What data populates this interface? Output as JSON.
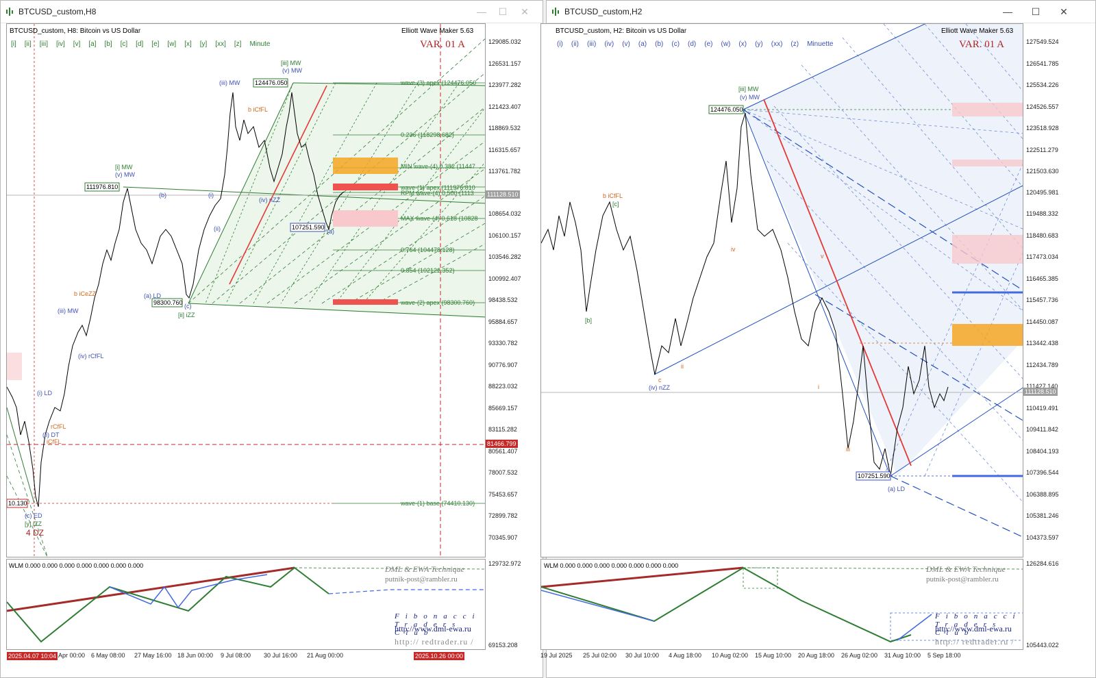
{
  "left": {
    "window_title": "BTCUSD_custom,H8",
    "symbol_line": "BTCUSD_custom, H8:  Bitcoin vs US Dollar",
    "tool_label": "Elliott Wave Maker 5.63",
    "var_label": "VAR. 01 A",
    "timeframes": [
      "[i]",
      "[ii]",
      "[iii]",
      "[iv]",
      "[v]",
      "[a]",
      "[b]",
      "[c]",
      "[d]",
      "[e]",
      "[w]",
      "[x]",
      "[y]",
      "[xx]",
      "[z]"
    ],
    "degree": "Minute",
    "price_labels": [
      "129085.032",
      "126531.157",
      "123977.282",
      "121423.407",
      "118869.532",
      "116315.657",
      "113761.782",
      "111128.510",
      "108654.032",
      "106100.157",
      "103546.282",
      "100992.407",
      "98438.532",
      "95884.657",
      "93330.782",
      "90776.907",
      "88223.032",
      "85669.157",
      "83115.282",
      "80561.407",
      "78007.532",
      "75453.657",
      "72899.782",
      "70345.907"
    ],
    "current_price": "111128.510",
    "red_price": "81466.799",
    "date_labels": [
      "Apr 00:00",
      "6 May 08:00",
      "27 May 16:00",
      "18 Jun 00:00",
      "9 Jul 08:00",
      "30 Jul 16:00",
      "21 Aug 00:00"
    ],
    "date_start": "2025.04.07 10:04",
    "date_end": "2025.10.26 00:00",
    "boxes": {
      "top": "124476.050",
      "left": "111976.810",
      "low": "98300.760",
      "mid": "107251.590",
      "base": "10.130"
    },
    "fib_labels": [
      "wave-(3) apex (124476.050",
      "0.236 (118298.682)",
      "MIN wave-(4) 0.382 (11447",
      "wave-(1) apex (111976.810",
      "RPM wave-(4) 0.500 (1113",
      "MAX wave-(4) 0.618 (10828",
      "0.764 (104478.128)",
      "0.854 (102122.352)",
      "wave-(2) apex (98300.760)",
      "wave-(1) base (74410.130)"
    ],
    "wave_labels": [
      "[iii] MW",
      "(v) MW",
      "(iii) MW",
      "[i] MW",
      "(v) MW",
      "b iCfFL",
      "(iv) nZZ",
      "(a) LD",
      "[ii] iZZ",
      "(iii) MW",
      "b iCeZZ",
      "(iv) rCfFL",
      "(i) LD",
      "(ii) DT",
      "rCfFL",
      "iCfFL",
      "(c) ED",
      "[y] iZZ",
      "4 DZ",
      "(c)",
      "(a)",
      "(b)",
      "(ii)",
      "(i)"
    ],
    "wlm_text": "WLM 0.000 0.000 0.000 0.000 0.000 0.000 0.000",
    "wlm_price_top": "129732.972",
    "wlm_price_bottom": "69153.208",
    "brand": "DML & EWA Technique",
    "email": "putnik-post@rambler.ru",
    "fibclub": "Fibonacci Traders Club",
    "url1": "http://www.dml-ewa.ru",
    "url2": "http:// redtrader.ru /"
  },
  "right": {
    "window_title": "BTCUSD_custom,H2",
    "symbol_line": "BTCUSD_custom, H2:  Bitcoin vs US Dollar",
    "tool_label": "Elliott Wave Maker 5.63",
    "var_label": "VAR. 01 A",
    "timeframes": [
      "(i)",
      "(ii)",
      "(iii)",
      "(iv)",
      "(v)",
      "(a)",
      "(b)",
      "(c)",
      "(d)",
      "(e)",
      "(w)",
      "(x)",
      "(y)",
      "(xx)",
      "(z)"
    ],
    "degree": "Minuette",
    "price_labels": [
      "127549.524",
      "126541.785",
      "125534.226",
      "124526.557",
      "123518.928",
      "122511.279",
      "121503.630",
      "120495.981",
      "119488.332",
      "118480.683",
      "117473.034",
      "116465.385",
      "115457.736",
      "114450.087",
      "113442.438",
      "112434.789",
      "111427.140",
      "110419.491",
      "109411.842",
      "108404.193",
      "107396.544",
      "106388.895",
      "105381.246",
      "104373.597"
    ],
    "current_price": "111128.510",
    "date_labels": [
      "19 Jul 2025",
      "25 Jul 02:00",
      "30 Jul 10:00",
      "4 Aug 18:00",
      "10 Aug 02:00",
      "15 Aug 10:00",
      "20 Aug 18:00",
      "26 Aug 02:00",
      "31 Aug 10:00",
      "5 Sep 18:00"
    ],
    "boxes": {
      "top": "124476.050",
      "low": "107251.590"
    },
    "wave_labels": [
      "[iii] MW",
      "(v) MW",
      "b iCfFL",
      "[c]",
      "[b]",
      "(iv) nZZ",
      "(a) LD",
      "iii",
      "iv",
      "ii",
      "i",
      "v",
      "c"
    ],
    "wlm_text": "WLM 0.000 0.000 0.000 0.000 0.000 0.000 0.000",
    "wlm_price_top": "126284.616",
    "wlm_price_bottom": "105443.022",
    "brand": "DML & EWA Technique",
    "email": "putnik-post@rambler.ru",
    "fibclub": "Fibonacci Traders Club",
    "url1": "http://www.dml-ewa.ru",
    "url2": "http:// redtrader.ru /"
  },
  "controls": {
    "minimize": "—",
    "maximize": "☐",
    "close": "✕"
  },
  "colors": {
    "bull_green": "#2e7d32",
    "bear_red": "#e53935",
    "fib_box_orange": "#f5a623",
    "pink_zone": "#f8c8cc",
    "wave_blue": "#3f51b5",
    "wave_orange": "#d2691e"
  }
}
